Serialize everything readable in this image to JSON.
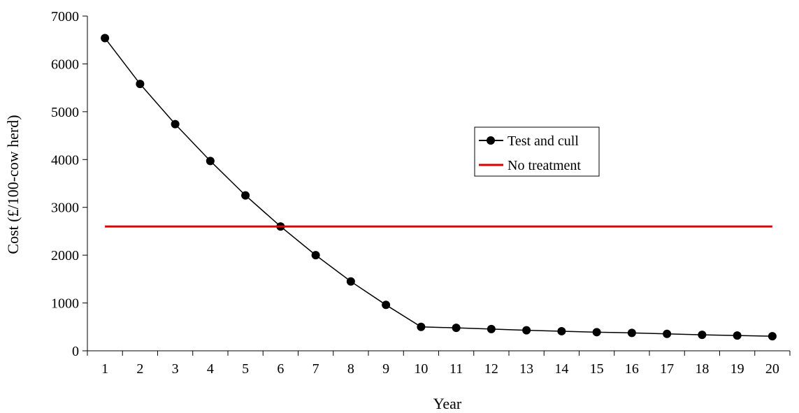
{
  "chart_data": {
    "type": "line",
    "title": "",
    "xlabel": "Year",
    "ylabel": "Cost (£/100-cow herd)",
    "categories": [
      "1",
      "2",
      "3",
      "4",
      "5",
      "6",
      "7",
      "8",
      "9",
      "10",
      "11",
      "12",
      "13",
      "14",
      "15",
      "16",
      "17",
      "18",
      "19",
      "20"
    ],
    "ylim": [
      0,
      7000
    ],
    "yticks": [
      0,
      1000,
      2000,
      3000,
      4000,
      5000,
      6000,
      7000
    ],
    "grid": false,
    "legend_position": "center-right",
    "series": [
      {
        "name": "Test and cull",
        "color": "#000000",
        "marker": "circle",
        "values": [
          6540,
          5580,
          4740,
          3970,
          3250,
          2600,
          2000,
          1450,
          960,
          500,
          480,
          455,
          430,
          410,
          390,
          375,
          355,
          335,
          320,
          305
        ]
      },
      {
        "name": "No treatment",
        "color": "#e00000",
        "marker": "none",
        "values": [
          2600,
          2600,
          2600,
          2600,
          2600,
          2600,
          2600,
          2600,
          2600,
          2600,
          2600,
          2600,
          2600,
          2600,
          2600,
          2600,
          2600,
          2600,
          2600,
          2600
        ]
      }
    ]
  }
}
